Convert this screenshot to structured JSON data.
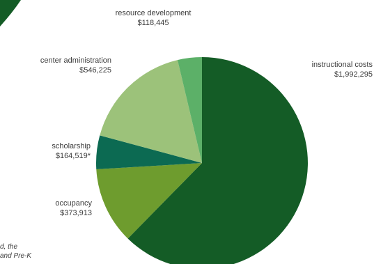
{
  "chart_data": {
    "type": "pie",
    "title": "",
    "slices": [
      {
        "name": "instructional costs",
        "value": 1992295,
        "value_label": "$1,992,295",
        "color": "#145c26"
      },
      {
        "name": "occupancy",
        "value": 373913,
        "value_label": "$373,913",
        "color": "#6e9c2e"
      },
      {
        "name": "scholarship",
        "value": 164519,
        "value_label": "$164,519*",
        "color": "#0c6a52"
      },
      {
        "name": "center administration",
        "value": 546225,
        "value_label": "$546,225",
        "color": "#9cc27a"
      },
      {
        "name": "resource development",
        "value": 118445,
        "value_label": "$118,445",
        "color": "#5cb068"
      }
    ],
    "start_angle_deg": 0,
    "direction": "clockwise"
  },
  "footnote": {
    "line1": "d, the",
    "line2": "and Pre-K"
  },
  "colors": {
    "background": "#ffffff",
    "corner_accent": "#145c26"
  }
}
